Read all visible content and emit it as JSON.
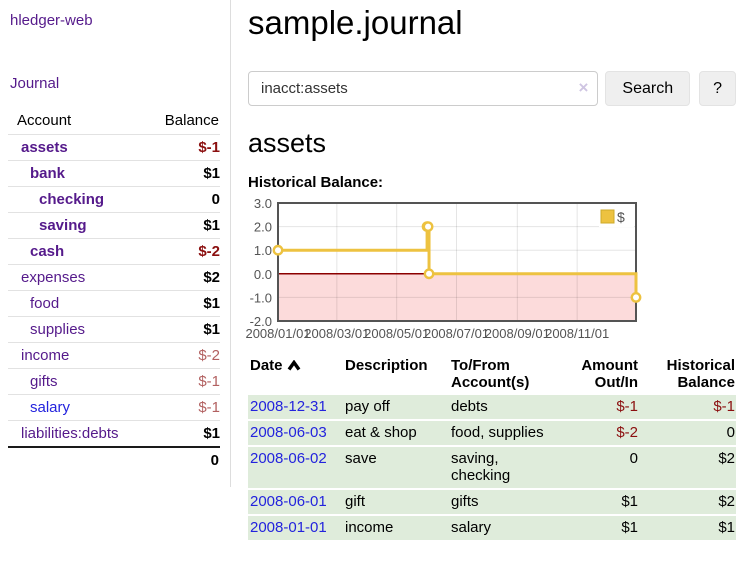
{
  "sidebar": {
    "brand": "hledger-web",
    "journal_link": "Journal",
    "accounts_table": {
      "account_header": "Account",
      "balance_header": "Balance",
      "rows": [
        {
          "name": "assets",
          "indent": 1,
          "balance": "$-1",
          "inacct": true,
          "balance_style": "neg-strong",
          "link": "visited"
        },
        {
          "name": "bank",
          "indent": 2,
          "balance": "$1",
          "inacct": true,
          "balance_style": "pos",
          "link": "visited"
        },
        {
          "name": "checking",
          "indent": 3,
          "balance": "0",
          "inacct": true,
          "balance_style": "pos",
          "link": "visited"
        },
        {
          "name": "saving",
          "indent": 3,
          "balance": "$1",
          "inacct": true,
          "balance_style": "pos",
          "link": "visited"
        },
        {
          "name": "cash",
          "indent": 2,
          "balance": "$-2",
          "inacct": true,
          "balance_style": "neg-strong",
          "link": "visited"
        },
        {
          "name": "expenses",
          "indent": 1,
          "balance": "$2",
          "inacct": false,
          "balance_style": "pos",
          "link": "visited"
        },
        {
          "name": "food",
          "indent": 2,
          "balance": "$1",
          "inacct": false,
          "balance_style": "pos",
          "link": "visited"
        },
        {
          "name": "supplies",
          "indent": 2,
          "balance": "$1",
          "inacct": false,
          "balance_style": "pos",
          "link": "visited"
        },
        {
          "name": "income",
          "indent": 1,
          "balance": "$-2",
          "inacct": false,
          "balance_style": "neg-dim",
          "link": "visited"
        },
        {
          "name": "gifts",
          "indent": 2,
          "balance": "$-1",
          "inacct": false,
          "balance_style": "neg-dim",
          "link": "visited"
        },
        {
          "name": "salary",
          "indent": 2,
          "balance": "$-1",
          "inacct": false,
          "balance_style": "neg-dim",
          "link": "unvisited"
        },
        {
          "name": "liabilities:debts",
          "indent": 1,
          "balance": "$1",
          "inacct": false,
          "balance_style": "pos",
          "link": "visited"
        }
      ],
      "total": "0"
    }
  },
  "header": {
    "title": "sample.journal"
  },
  "search": {
    "value": "inacct:assets",
    "clear_icon": "×",
    "search_button": "Search",
    "help_button": "?"
  },
  "main": {
    "account_heading": "assets",
    "chart_label": "Historical Balance:"
  },
  "chart_data": {
    "type": "line",
    "title": "Historical Balance",
    "step": true,
    "legend_label": "$",
    "legend_position": "top-right",
    "grid": true,
    "y_range": [
      -2,
      3
    ],
    "x_range_days": [
      0,
      365
    ],
    "y_ticks": [
      {
        "v": 3,
        "label": "3.0"
      },
      {
        "v": 2,
        "label": "2.0"
      },
      {
        "v": 1,
        "label": "1.0"
      },
      {
        "v": 0,
        "label": "0.0"
      },
      {
        "v": -1,
        "label": "-1.0"
      },
      {
        "v": -2,
        "label": "-2.0"
      }
    ],
    "x_ticks": [
      {
        "d": 0,
        "label": "2008/01/01"
      },
      {
        "d": 60,
        "label": "2008/03/01"
      },
      {
        "d": 121,
        "label": "2008/05/01"
      },
      {
        "d": 182,
        "label": "2008/07/01"
      },
      {
        "d": 244,
        "label": "2008/09/01"
      },
      {
        "d": 305,
        "label": "2008/11/01"
      }
    ],
    "series": [
      {
        "name": "$",
        "dates": [
          "2008-01-01",
          "2008-06-01",
          "2008-06-02",
          "2008-06-03",
          "2008-12-31"
        ],
        "x_days": [
          0,
          152,
          153,
          154,
          365
        ],
        "values": [
          1,
          2,
          2,
          0,
          -1
        ]
      }
    ],
    "colors": {
      "line": "#edc240",
      "marker_fill": "#ffffff",
      "negative_region": "#fcdbdb",
      "zero_line": "#8b0000",
      "plot_border": "#545454",
      "tick_label": "#545454",
      "legend_box_border": "#cdaa29"
    }
  },
  "register": {
    "headers": {
      "date": "Date",
      "description": "Description",
      "accounts": "To/From Account(s)",
      "amount": "Amount Out/In",
      "balance": "Historical Balance"
    },
    "sort_icon": "chevron-up",
    "rows": [
      {
        "date": "2008-12-31",
        "description": "pay off",
        "accounts": "debts",
        "amount": "$-1",
        "amount_neg": true,
        "balance": "$-1",
        "balance_neg": true
      },
      {
        "date": "2008-06-03",
        "description": "eat & shop",
        "accounts": "food, supplies",
        "amount": "$-2",
        "amount_neg": true,
        "balance": "0",
        "balance_neg": false
      },
      {
        "date": "2008-06-02",
        "description": "save",
        "accounts": "saving, checking",
        "amount": "0",
        "amount_neg": false,
        "balance": "$2",
        "balance_neg": false
      },
      {
        "date": "2008-06-01",
        "description": "gift",
        "accounts": "gifts",
        "amount": "$1",
        "amount_neg": false,
        "balance": "$2",
        "balance_neg": false
      },
      {
        "date": "2008-01-01",
        "description": "income",
        "accounts": "salary",
        "amount": "$1",
        "amount_neg": false,
        "balance": "$1",
        "balance_neg": false
      }
    ]
  }
}
